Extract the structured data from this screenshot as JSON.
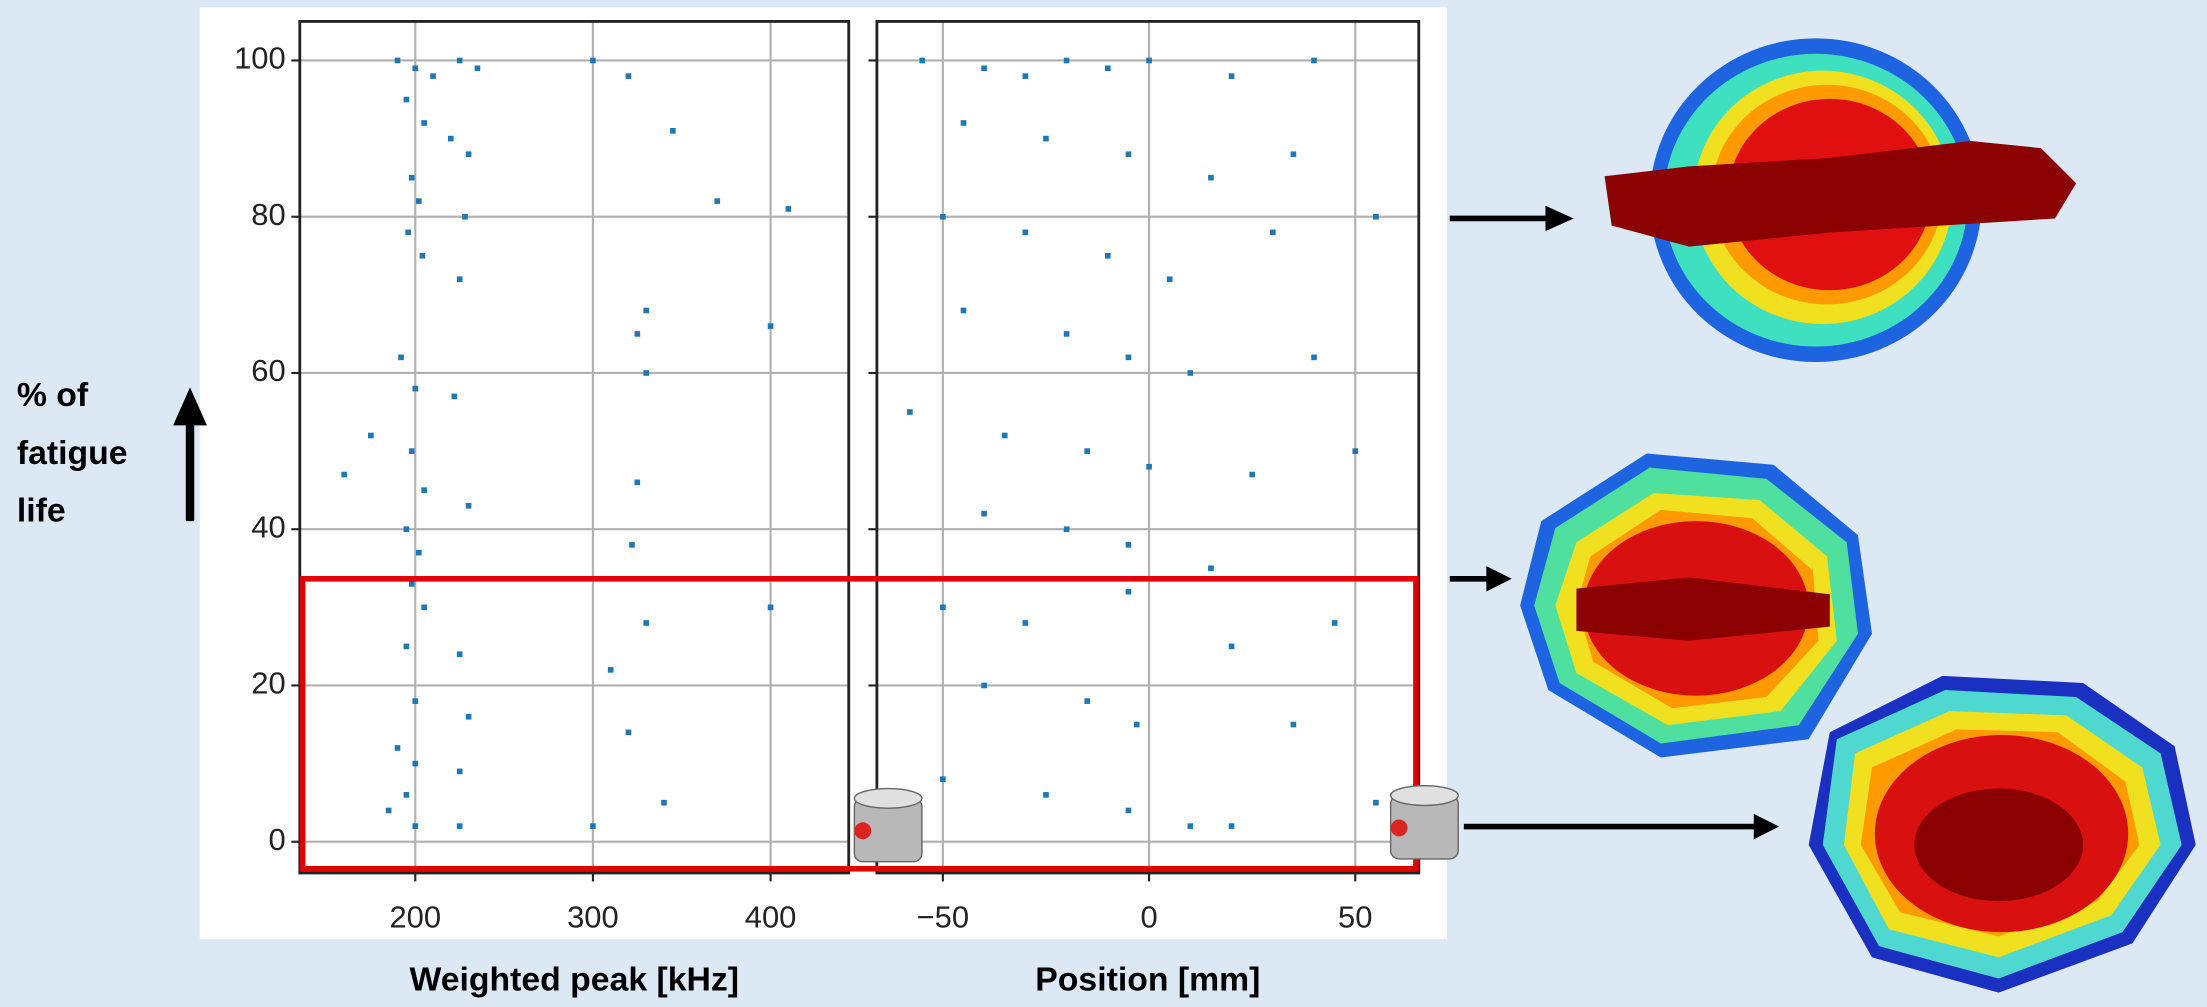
{
  "chart_data": [
    {
      "type": "scatter",
      "xlabel": "Weighted peak [kHz]",
      "ylabel_lines": [
        "% of",
        "fatigue",
        "life"
      ],
      "color": "#1f77b4",
      "grid": true,
      "ytick_labels": true,
      "xlim": [
        135,
        444
      ],
      "ylim": [
        -4,
        105
      ],
      "xticks": [
        200,
        300,
        400
      ],
      "yticks": [
        0,
        20,
        40,
        60,
        80,
        100
      ],
      "x": [
        190,
        200,
        210,
        225,
        235,
        300,
        320,
        345,
        195,
        205,
        220,
        230,
        198,
        202,
        228,
        370,
        410,
        196,
        204,
        225,
        330,
        325,
        400,
        192,
        200,
        222,
        330,
        175,
        160,
        198,
        205,
        230,
        325,
        195,
        202,
        322,
        198,
        205,
        330,
        400,
        195,
        225,
        310,
        200,
        230,
        320,
        190,
        200,
        225,
        195,
        185,
        200,
        225,
        300,
        340
      ],
      "y": [
        100,
        99,
        98,
        100,
        99,
        100,
        98,
        91,
        95,
        92,
        90,
        88,
        85,
        82,
        80,
        82,
        81,
        78,
        75,
        72,
        68,
        65,
        66,
        62,
        58,
        57,
        60,
        52,
        47,
        50,
        45,
        43,
        46,
        40,
        37,
        38,
        33,
        30,
        28,
        30,
        25,
        24,
        22,
        18,
        16,
        14,
        12,
        10,
        9,
        6,
        4,
        2,
        2,
        2,
        5
      ]
    },
    {
      "type": "scatter",
      "xlabel": "Position [mm]",
      "color": "#1f77b4",
      "grid": true,
      "ytick_labels": false,
      "xlim": [
        -66,
        65.4
      ],
      "ylim": [
        -4,
        105
      ],
      "xticks": [
        {
          "value": -50,
          "label": "−50"
        },
        0,
        50
      ],
      "yticks": [
        0,
        20,
        40,
        60,
        80,
        100
      ],
      "x": [
        -55,
        -40,
        -30,
        -20,
        -10,
        0,
        20,
        40,
        -45,
        -25,
        -5,
        15,
        35,
        -50,
        -30,
        -10,
        5,
        30,
        55,
        -45,
        -20,
        -5,
        10,
        40,
        -58,
        -35,
        -15,
        0,
        25,
        50,
        -40,
        -20,
        -5,
        15,
        -50,
        -30,
        -5,
        20,
        45,
        -40,
        -15,
        -3,
        35,
        -50,
        -25,
        -5,
        10,
        20,
        55
      ],
      "y": [
        100,
        99,
        98,
        100,
        99,
        100,
        98,
        100,
        92,
        90,
        88,
        85,
        88,
        80,
        78,
        75,
        72,
        78,
        80,
        68,
        65,
        62,
        60,
        62,
        55,
        52,
        50,
        48,
        47,
        50,
        42,
        40,
        38,
        35,
        30,
        28,
        32,
        25,
        28,
        20,
        18,
        15,
        15,
        8,
        6,
        4,
        2,
        2,
        5
      ]
    }
  ]
}
